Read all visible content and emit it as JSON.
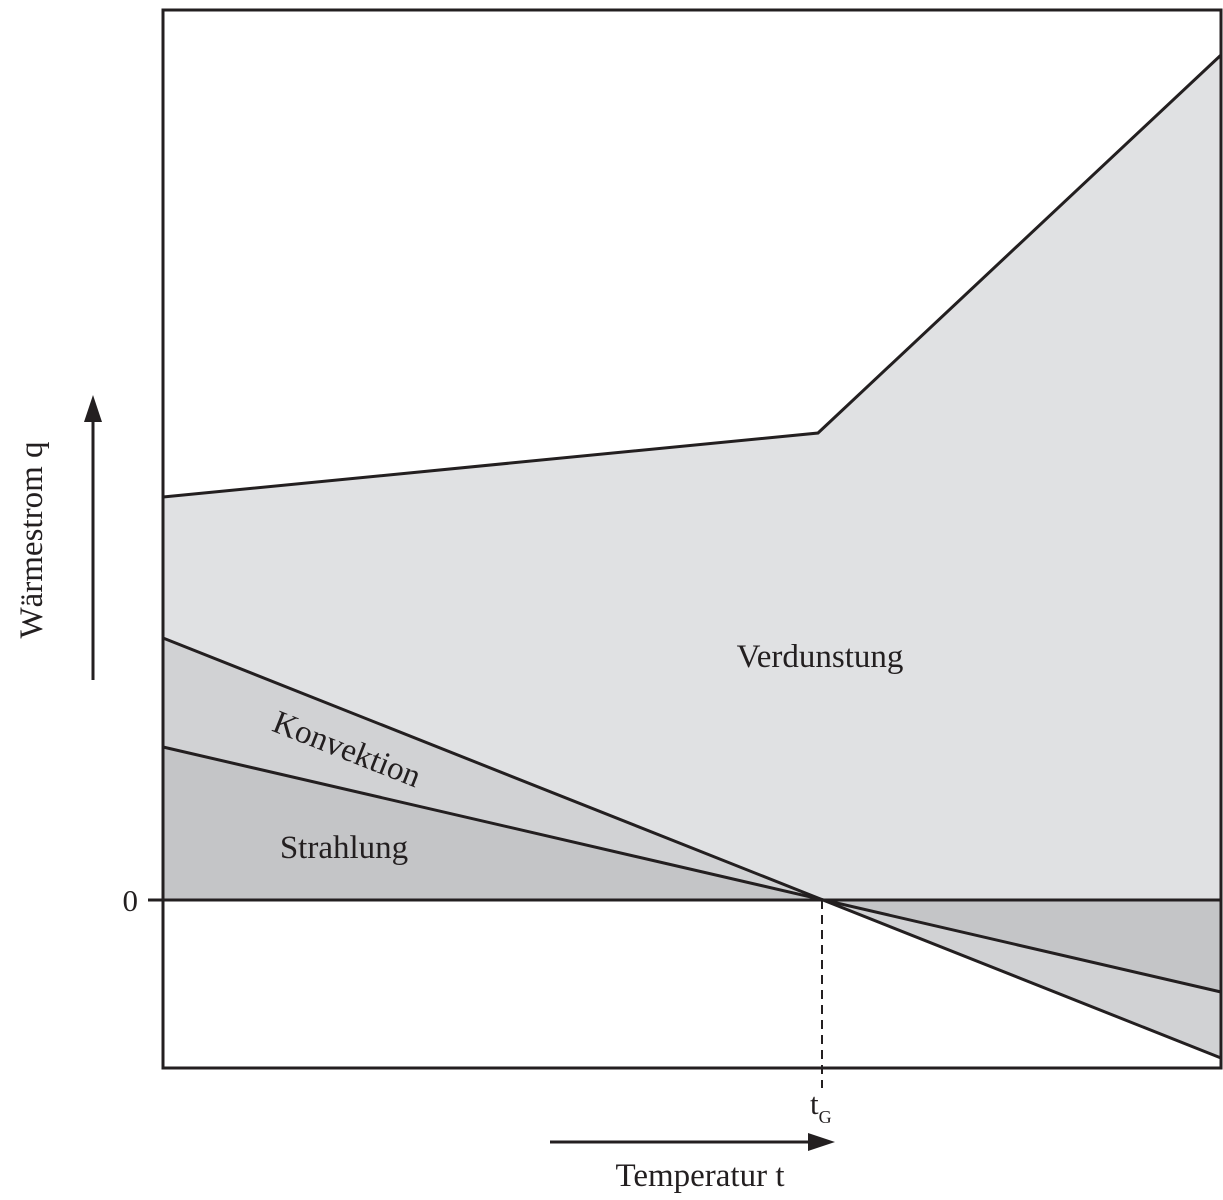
{
  "labels": {
    "y_axis": "Wärmestrom q",
    "y_zero": "0",
    "x_axis": "Temperatur t",
    "x_mark_base": "t",
    "x_mark_sub": "G",
    "region_evaporation": "Verdunstung",
    "region_convection": "Konvektion",
    "region_radiation": "Strahlung"
  },
  "colors": {
    "line": "#231f20",
    "fill_evaporation": "#e0e1e3",
    "fill_convection": "#d1d2d4",
    "fill_radiation": "#c4c5c7"
  }
}
